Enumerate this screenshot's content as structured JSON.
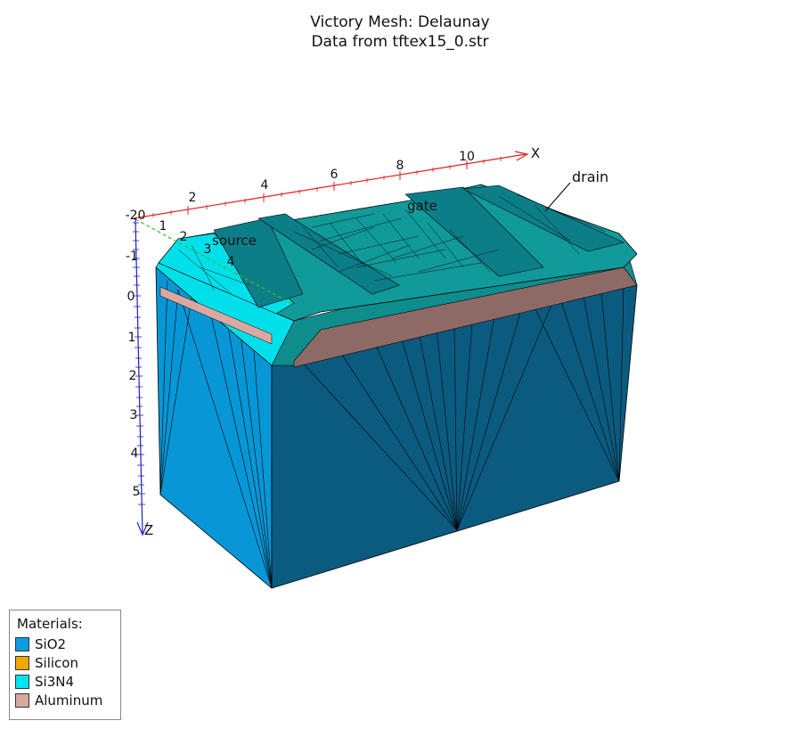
{
  "title": {
    "line1": "Victory Mesh: Delaunay",
    "line2": "Data from tftex15_0.str"
  },
  "axes": {
    "x": {
      "label": "X",
      "ticks": [
        "2",
        "4",
        "6",
        "8",
        "10"
      ],
      "color": "#e02020"
    },
    "y": {
      "ticks": [
        "1",
        "2",
        "3",
        "4"
      ],
      "color": "#30c030"
    },
    "z": {
      "label": "Z",
      "ticks": [
        "-20",
        "-1",
        "0",
        "1",
        "2",
        "3",
        "4",
        "5"
      ],
      "color": "#2020c0"
    }
  },
  "annotations": {
    "drain": "drain",
    "gate": "gate",
    "source": "source"
  },
  "legend": {
    "header": "Materials:",
    "items": [
      {
        "name": "SiO2",
        "color": "#0a9fe0"
      },
      {
        "name": "Silicon",
        "color": "#f0a800"
      },
      {
        "name": "Si3N4",
        "color": "#00e5f0"
      },
      {
        "name": "Aluminum",
        "color": "#d9a8a0"
      }
    ]
  },
  "colors": {
    "sio2_front": "#0797d6",
    "sio2_side": "#0b5b80",
    "si3n4": "#00e0ea",
    "si3n4_top_dark": "#109a9a",
    "aluminum_side": "#8e6a66",
    "mesh_line": "#000000"
  }
}
